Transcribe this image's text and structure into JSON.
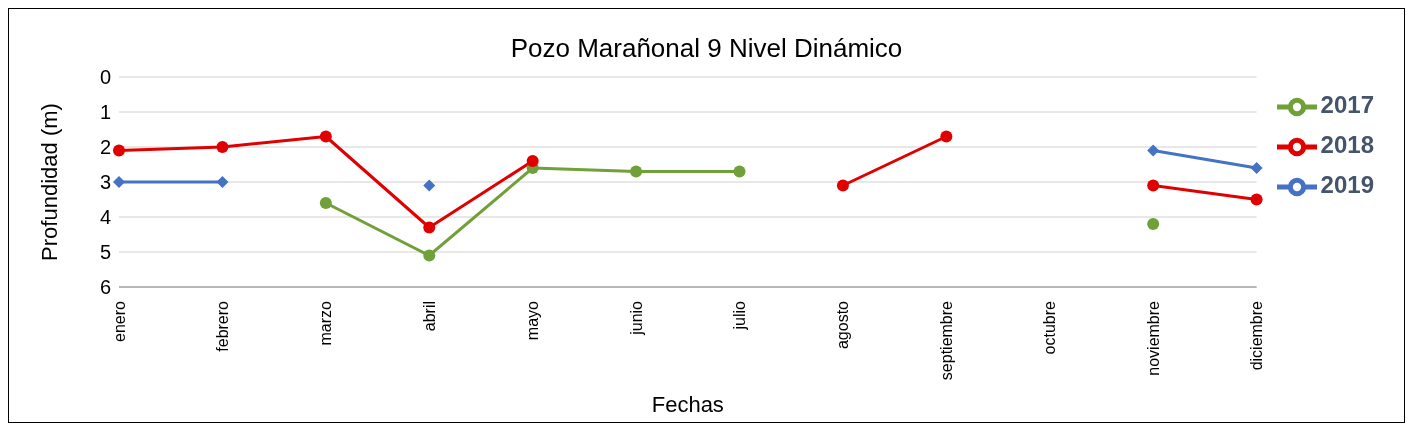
{
  "chart_data": {
    "type": "line",
    "title": "Pozo Marañonal 9 Nivel Dinámico",
    "xlabel": "Fechas",
    "ylabel": "Profundidad (m)",
    "categories": [
      "enero",
      "febrero",
      "marzo",
      "abril",
      "mayo",
      "junio",
      "julio",
      "agosto",
      "septiembre",
      "octubre",
      "noviembre",
      "diciembre"
    ],
    "series": [
      {
        "name": "2017",
        "color": "#70a038",
        "marker": "circle",
        "values": [
          null,
          null,
          3.6,
          5.1,
          2.6,
          2.7,
          2.7,
          null,
          null,
          null,
          4.2,
          null
        ]
      },
      {
        "name": "2018",
        "color": "#e00000",
        "marker": "circle",
        "values": [
          2.1,
          2.0,
          1.7,
          4.3,
          2.4,
          null,
          null,
          3.1,
          1.7,
          null,
          3.1,
          3.5
        ]
      },
      {
        "name": "2019",
        "color": "#4472c4",
        "marker": "diamond",
        "values": [
          3.0,
          3.0,
          null,
          3.1,
          null,
          null,
          null,
          null,
          null,
          null,
          2.1,
          2.6
        ]
      }
    ],
    "ylim": [
      6,
      0
    ],
    "yticks": [
      0,
      1,
      2,
      3,
      4,
      5,
      6
    ],
    "grid": "y",
    "legend": "right"
  }
}
